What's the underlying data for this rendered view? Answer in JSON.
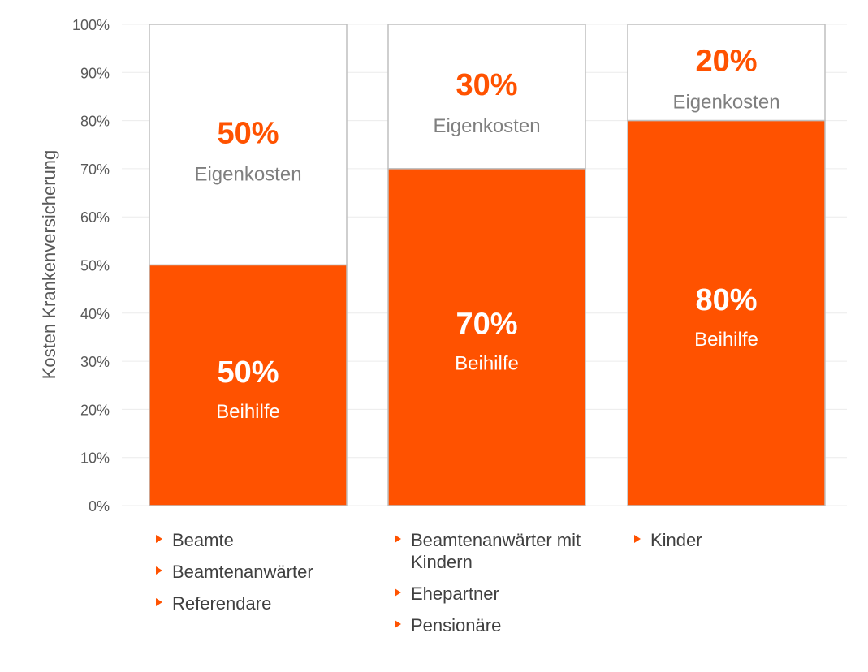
{
  "chart_data": {
    "type": "bar",
    "stacked": true,
    "ylabel": "Kosten Krankenversicherung",
    "ylim": [
      0,
      100
    ],
    "yticks": [
      "0%",
      "10%",
      "20%",
      "30%",
      "40%",
      "50%",
      "60%",
      "70%",
      "80%",
      "90%",
      "100%"
    ],
    "grid": true,
    "colors": {
      "beihilfe": "#ff5200",
      "eigenkosten": "#ffffff",
      "accent_text": "#ff5200",
      "muted_text": "#7f7f7f"
    },
    "bars": [
      {
        "beihilfe_value": 50,
        "eigenkosten_value": 50,
        "beihilfe_pct_label": "50%",
        "beihilfe_label": "Beihilfe",
        "eigenkosten_pct_label": "50%",
        "eigenkosten_label": "Eigenkosten",
        "groups": [
          "Beamte",
          "Beamtenanwärter",
          "Referendare"
        ]
      },
      {
        "beihilfe_value": 70,
        "eigenkosten_value": 30,
        "beihilfe_pct_label": "70%",
        "beihilfe_label": "Beihilfe",
        "eigenkosten_pct_label": "30%",
        "eigenkosten_label": "Eigenkosten",
        "groups": [
          "Beamtenanwärter mit Kindern",
          "Ehepartner",
          "Pensionäre"
        ]
      },
      {
        "beihilfe_value": 80,
        "eigenkosten_value": 20,
        "beihilfe_pct_label": "80%",
        "beihilfe_label": "Beihilfe",
        "eigenkosten_pct_label": "20%",
        "eigenkosten_label": "Eigenkosten",
        "groups": [
          "Kinder"
        ]
      }
    ]
  }
}
